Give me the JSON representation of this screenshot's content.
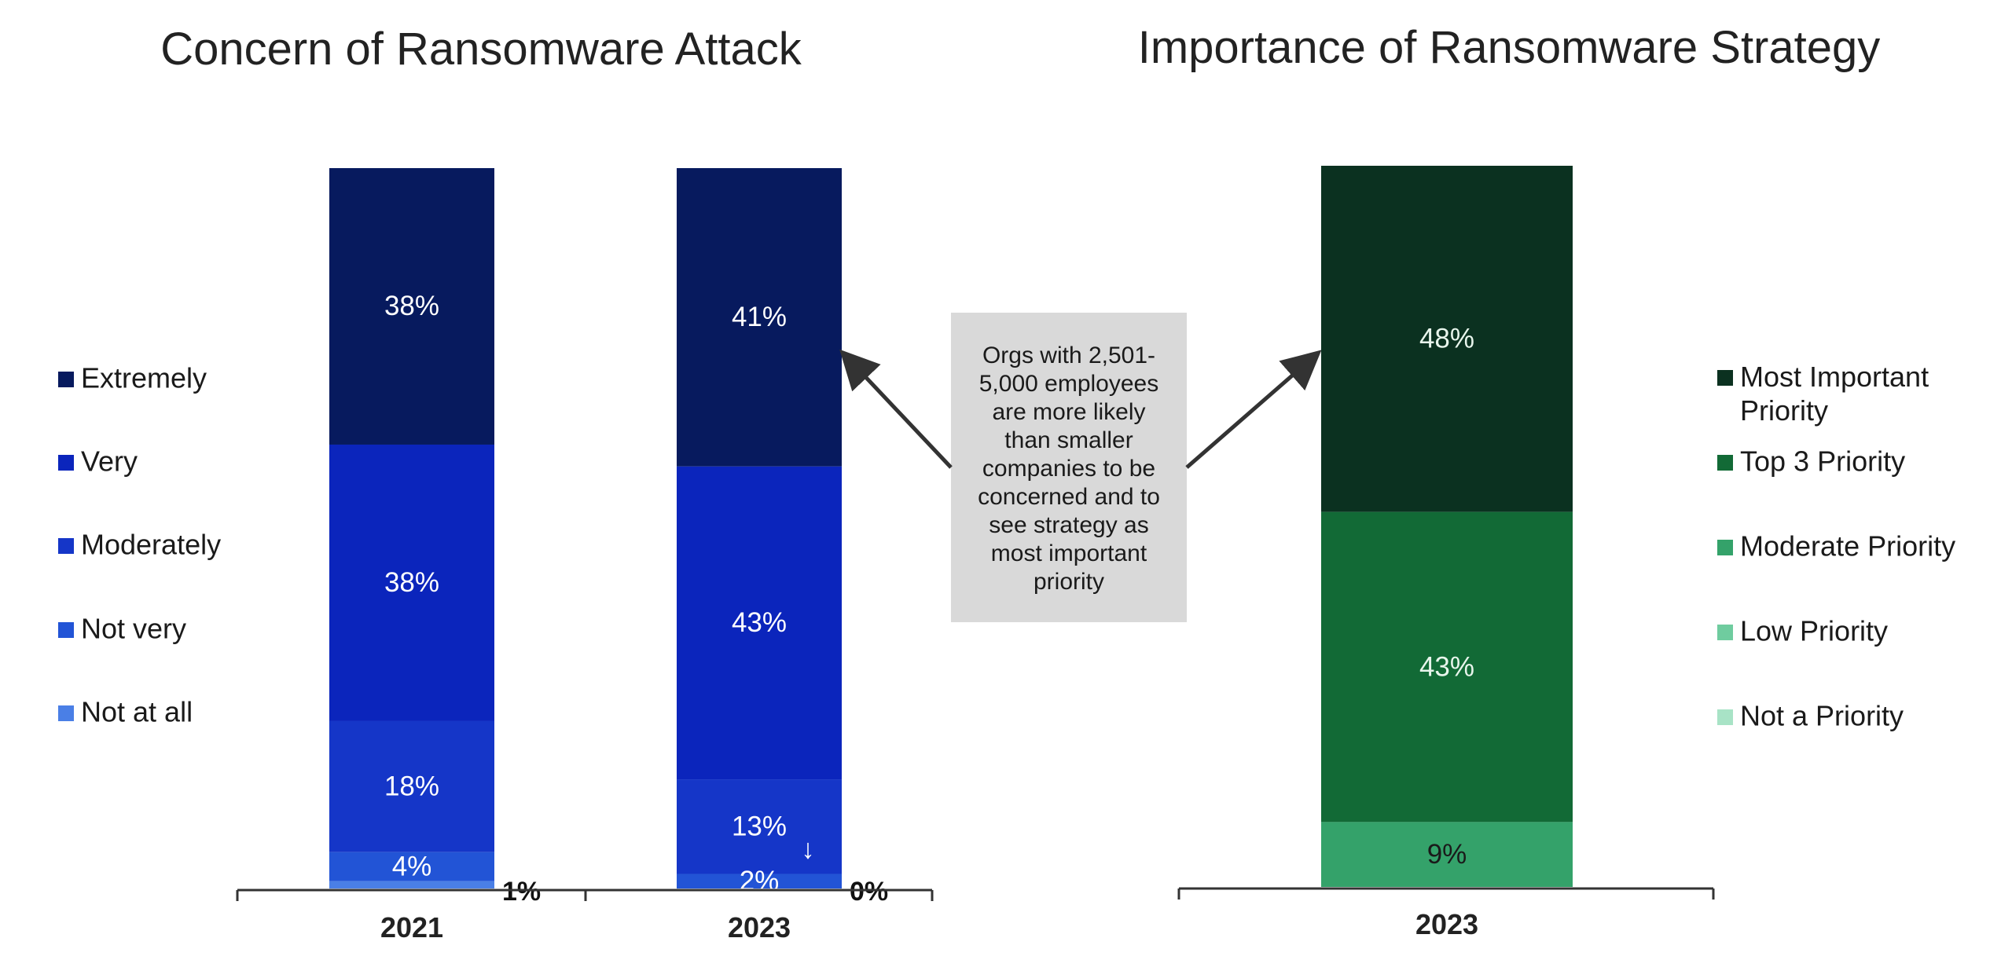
{
  "colors": {
    "extremely": "#071a5e",
    "very": "#0b25bc",
    "moderately": "#1536c8",
    "not_very": "#2254d6",
    "not_at_all": "#4a7fe6",
    "most_important": "#0b3120",
    "top3": "#126a36",
    "moderate_priority": "#34a26a",
    "low_priority": "#6fcc9f",
    "not_priority": "#a8e3c6",
    "callout_bg": "#d9d9d9",
    "axis": "#333333"
  },
  "callout": {
    "text_lines": [
      "Orgs with 2,501-",
      "5,000 employees",
      "are more likely",
      "than smaller",
      "companies to be",
      "concerned and to",
      "see strategy as",
      "most important",
      "priority"
    ]
  },
  "chart_data": [
    {
      "type": "bar",
      "stacked": true,
      "title": "Concern of Ransomware Attack",
      "categories": [
        "2021",
        "2023"
      ],
      "series": [
        {
          "name": "Extremely",
          "values": [
            38,
            41
          ],
          "labels": [
            "38%",
            "41%"
          ],
          "color_key": "extremely"
        },
        {
          "name": "Very",
          "values": [
            38,
            43
          ],
          "labels": [
            "38%",
            "43%"
          ],
          "color_key": "very"
        },
        {
          "name": "Moderately",
          "values": [
            18,
            13
          ],
          "labels": [
            "18%",
            "13%"
          ],
          "color_key": "moderately"
        },
        {
          "name": "Not very",
          "values": [
            4,
            2
          ],
          "labels": [
            "4%",
            "2%"
          ],
          "color_key": "not_very"
        },
        {
          "name": "Not at all",
          "values": [
            1,
            0
          ],
          "labels": [
            "1%",
            "0%"
          ],
          "color_key": "not_at_all"
        }
      ],
      "legend_order": [
        "Extremely",
        "Very",
        "Moderately",
        "Not very",
        "Not at all"
      ],
      "legend_position": "left",
      "annotations": [
        "↓"
      ]
    },
    {
      "type": "bar",
      "stacked": true,
      "title": "Importance of Ransomware Strategy",
      "categories": [
        "2023"
      ],
      "series": [
        {
          "name": "Most Important Priority",
          "values": [
            48
          ],
          "labels": [
            "48%"
          ],
          "color_key": "most_important"
        },
        {
          "name": "Top 3 Priority",
          "values": [
            43
          ],
          "labels": [
            "43%"
          ],
          "color_key": "top3"
        },
        {
          "name": "Moderate Priority",
          "values": [
            9
          ],
          "labels": [
            "9%"
          ],
          "color_key": "moderate_priority"
        },
        {
          "name": "Low Priority",
          "values": [
            0
          ],
          "labels": [
            ""
          ],
          "color_key": "low_priority"
        },
        {
          "name": "Not a Priority",
          "values": [
            0
          ],
          "labels": [
            ""
          ],
          "color_key": "not_priority"
        }
      ],
      "legend_order": [
        "Most Important Priority",
        "Top 3 Priority",
        "Moderate Priority",
        "Low Priority",
        "Not a Priority"
      ],
      "legend_position": "right"
    }
  ]
}
